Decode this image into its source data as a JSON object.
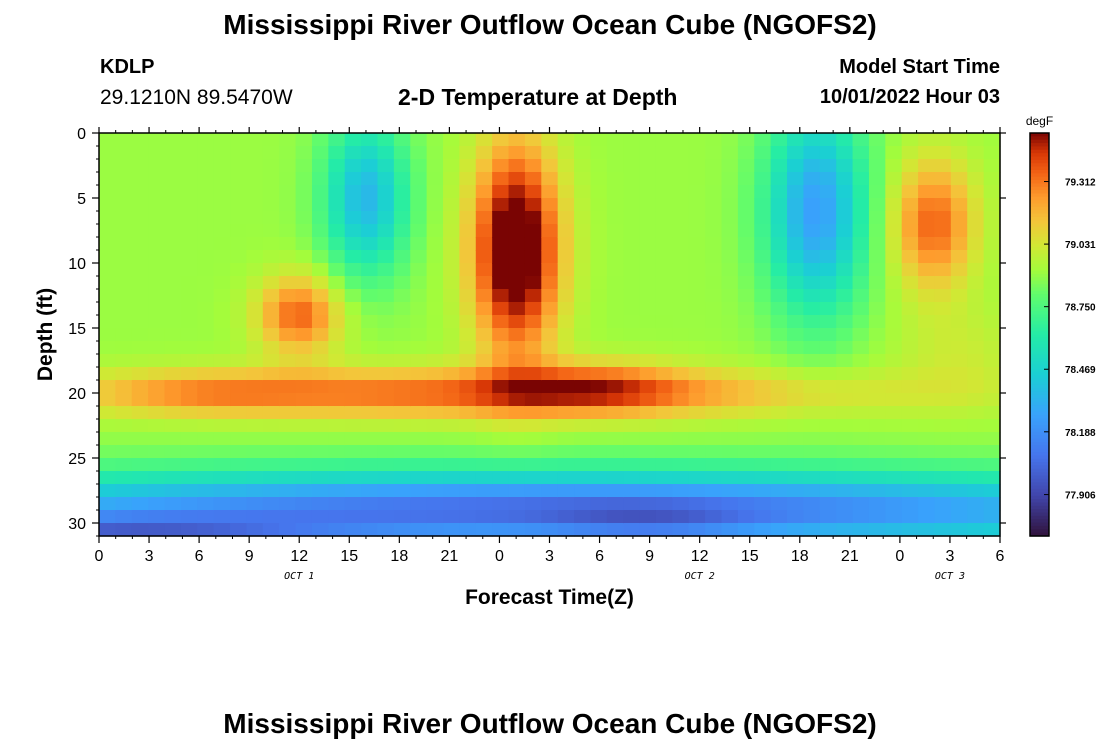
{
  "header": {
    "title": "Mississippi River Outflow Ocean Cube (NGOFS2)",
    "title_repeat": "Mississippi River Outflow Ocean Cube (NGOFS2)",
    "station_id": "KDLP",
    "station_coords": "29.1210N  89.5470W",
    "subtitle": "2-D Temperature at Depth",
    "model_start_label": "Model Start Time",
    "model_start_value": "10/01/2022 Hour 03"
  },
  "chart_data": {
    "type": "heatmap",
    "title": "2-D Temperature at Depth",
    "xlabel": "Forecast Time(Z)",
    "ylabel": "Depth (ft)",
    "xlim": [
      0,
      54
    ],
    "ylim": [
      31,
      0
    ],
    "x_ticks": [
      0,
      3,
      6,
      9,
      12,
      15,
      18,
      21,
      24,
      27,
      30,
      33,
      36,
      39,
      42,
      45,
      48,
      51,
      54
    ],
    "x_tick_labels": [
      "0",
      "3",
      "6",
      "9",
      "12",
      "15",
      "18",
      "21",
      "0",
      "3",
      "6",
      "9",
      "12",
      "15",
      "18",
      "21",
      "0",
      "3",
      "6"
    ],
    "y_ticks": [
      0,
      5,
      10,
      15,
      20,
      25,
      30
    ],
    "y_tick_labels": [
      "0",
      "5",
      "10",
      "15",
      "20",
      "25",
      "30"
    ],
    "day_labels": [
      {
        "x": 12,
        "text": "OCT 1"
      },
      {
        "x": 36,
        "text": "OCT 2"
      },
      {
        "x": 51,
        "text": "OCT 3"
      }
    ],
    "colorbar": {
      "unit": "degF",
      "min": 77.72,
      "max": 79.53,
      "ticks": [
        79.312,
        79.031,
        78.75,
        78.469,
        78.188,
        77.906
      ],
      "tick_labels": [
        "79.312",
        "79.031",
        "78.750",
        "78.469",
        "78.188",
        "77.906"
      ]
    },
    "features": [
      {
        "x": 22,
        "y": 20,
        "sx": 22,
        "sy": 1.9,
        "amp": 0.45
      },
      {
        "x": 6,
        "y": 20,
        "sx": 6,
        "sy": 1.6,
        "amp": 0.15
      },
      {
        "x": 12,
        "y": 14,
        "sx": 2.5,
        "sy": 3,
        "amp": 0.45
      },
      {
        "x": 30,
        "y": 19.5,
        "sx": 5,
        "sy": 2,
        "amp": 0.25
      },
      {
        "x": 25,
        "y": 9,
        "sx": 2.6,
        "sy": 8,
        "amp": 0.8
      },
      {
        "x": 50,
        "y": 7,
        "sx": 2.5,
        "sy": 5,
        "amp": 0.45
      },
      {
        "x": 51.5,
        "y": 17,
        "sx": 4,
        "sy": 4,
        "amp": 0.1
      },
      {
        "x": 16,
        "y": 5,
        "sx": 2.5,
        "sy": 6,
        "amp": -0.55
      },
      {
        "x": 43,
        "y": 6,
        "sx": 3,
        "sy": 8,
        "amp": -0.65
      },
      {
        "x": 27,
        "y": 29,
        "sx": 45,
        "sy": 3,
        "amp": -0.85
      },
      {
        "x": 0,
        "y": 31,
        "sx": 14,
        "sy": 1.4,
        "amp": -0.5
      },
      {
        "x": 33,
        "y": 30,
        "sx": 6,
        "sy": 1.5,
        "amp": -0.15
      }
    ],
    "base_value": 78.9
  },
  "colors": {
    "frame": "#000000",
    "background": "#ffffff"
  }
}
